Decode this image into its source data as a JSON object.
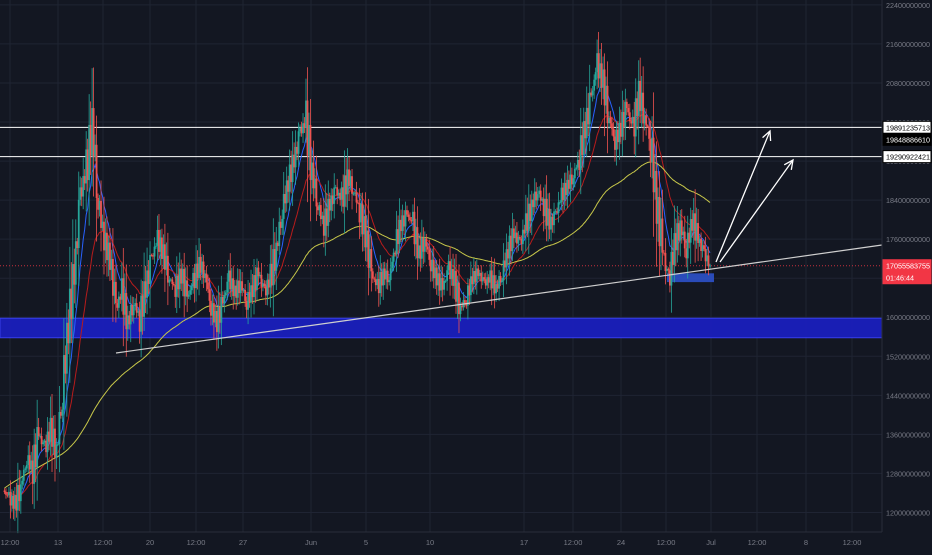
{
  "chart_data": {
    "type": "candlestick",
    "title": "",
    "xlabel": "",
    "ylabel": "",
    "y_scale": "linear",
    "ylim": [
      11600000000,
      22500000000
    ],
    "grid": true,
    "legend": "none",
    "x_ticks": [
      "12:00",
      "13",
      "12:00",
      "20",
      "12:00",
      "27",
      "Jun",
      "5",
      "10",
      "17",
      "12:00",
      "24",
      "12:00",
      "Jul",
      "12:00",
      "8",
      "12:00"
    ],
    "y_ticks": [
      {
        "value": 12000000000,
        "label": "12000000000"
      },
      {
        "value": 12800000000,
        "label": "12800000000"
      },
      {
        "value": 13600000000,
        "label": "13600000000"
      },
      {
        "value": 14400000000,
        "label": "14400000000"
      },
      {
        "value": 15200000000,
        "label": "15200000000"
      },
      {
        "value": 16000000000,
        "label": "16000000000"
      },
      {
        "value": 16800000000,
        "label": "16800000000"
      },
      {
        "value": 17600000000,
        "label": "17600000000"
      },
      {
        "value": 18400000000,
        "label": "18400000000"
      },
      {
        "value": 19200000000,
        "label": "19200000000"
      },
      {
        "value": 20000000000,
        "label": "20000000000"
      },
      {
        "value": 20800000000,
        "label": "20800000000"
      },
      {
        "value": 21600000000,
        "label": "21600000000"
      },
      {
        "value": 22400000000,
        "label": "22400000000"
      }
    ],
    "price_path": [
      12450000000,
      12300000000,
      12150000000,
      12550000000,
      13100000000,
      12900000000,
      13600000000,
      13300000000,
      13700000000,
      13250000000,
      14500000000,
      15900000000,
      16900000000,
      18500000000,
      19000000000,
      20000000000,
      18400000000,
      17600000000,
      17200000000,
      16200000000,
      16500000000,
      15900000000,
      16300000000,
      16000000000,
      16600000000,
      17200000000,
      17600000000,
      17300000000,
      16800000000,
      16600000000,
      16900000000,
      16400000000,
      16700000000,
      17100000000,
      16900000000,
      16200000000,
      15900000000,
      16300000000,
      16800000000,
      16500000000,
      16700000000,
      16300000000,
      16600000000,
      16900000000,
      16500000000,
      16800000000,
      17400000000,
      18200000000,
      18800000000,
      19200000000,
      19800000000,
      20000000000,
      19000000000,
      18300000000,
      17900000000,
      18300000000,
      18600000000,
      18400000000,
      18900000000,
      18600000000,
      18200000000,
      17700000000,
      16900000000,
      16600000000,
      16900000000,
      16800000000,
      17500000000,
      17900000000,
      18100000000,
      17900000000,
      17300000000,
      17600000000,
      17100000000,
      16800000000,
      16600000000,
      17000000000,
      16700000000,
      16200000000,
      16400000000,
      16800000000,
      16900000000,
      16700000000,
      16800000000,
      16600000000,
      16900000000,
      17400000000,
      17700000000,
      17500000000,
      17900000000,
      18300000000,
      18600000000,
      18300000000,
      17900000000,
      18100000000,
      18500000000,
      18700000000,
      18900000000,
      19300000000,
      19900000000,
      20500000000,
      21200000000,
      20800000000,
      20100000000,
      19600000000,
      19900000000,
      20300000000,
      19800000000,
      20600000000,
      20100000000,
      19600000000,
      18300000000,
      17400000000,
      16700000000,
      17500000000,
      17900000000,
      17400000000,
      18000000000,
      17600000000,
      17300000000,
      17060000000
    ],
    "series": [
      {
        "name": "",
        "color": "#2962ff",
        "type": "ema-fast"
      },
      {
        "name": "",
        "color": "#b71c1c",
        "type": "ema-mid"
      },
      {
        "name": "",
        "color": "#c8c84a",
        "type": "ema-slow"
      }
    ],
    "horizontal_levels": [
      {
        "value": 19891235713,
        "label": "19891235713",
        "color": "#ffffff",
        "style": "outlined"
      },
      {
        "value": 19848886610,
        "label": "19848886610",
        "color": "#ffffff",
        "style": "filled-black"
      },
      {
        "value": 19290922421,
        "label": "19290922421",
        "color": "#ffffff",
        "style": "outlined"
      }
    ],
    "last_price": {
      "value": 17055583755,
      "label": "17055583755",
      "countdown": "01:46:44",
      "color": "#f23645"
    },
    "support_zone": {
      "from": 15580000000,
      "to": 15980000000,
      "color": "#1a1fc4"
    },
    "small_zone": {
      "from": 16720000000,
      "to": 16900000000,
      "color": "#2f55d4"
    },
    "trendline": {
      "color": "#d0d0d0"
    },
    "arrows": {
      "color": "#ffffff",
      "count": 2
    }
  }
}
